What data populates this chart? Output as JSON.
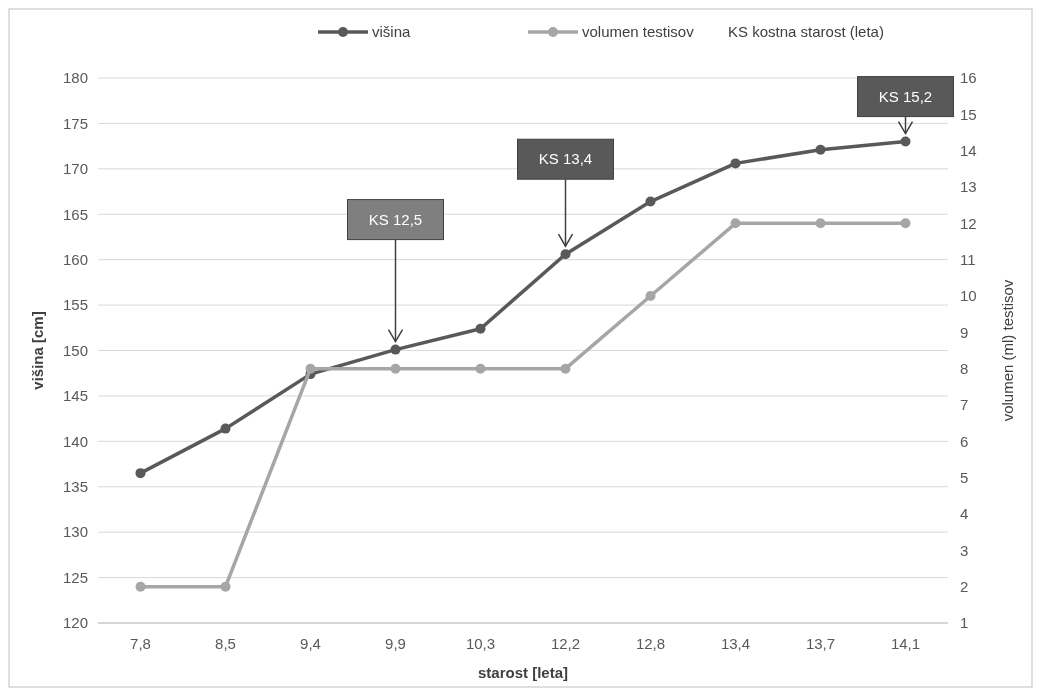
{
  "chart_data": {
    "type": "line",
    "xlabel": "starost [leta]",
    "ylabel": "višina [cm]",
    "y2label": "volumen (ml) testisov",
    "categories": [
      "7,8",
      "8,5",
      "9,4",
      "9,9",
      "10,3",
      "12,2",
      "12,8",
      "13,4",
      "13,7",
      "14,1"
    ],
    "series": [
      {
        "name": "višina",
        "color": "#595959",
        "values": [
          136.5,
          141.4,
          147.4,
          150.1,
          152.4,
          160.6,
          166.4,
          170.6,
          172.1,
          173.0
        ]
      },
      {
        "name": "volumen testisov",
        "color": "#a6a6a6",
        "axis": "y2",
        "values": [
          2,
          2,
          8,
          8,
          8,
          8,
          10,
          12,
          12,
          12
        ]
      }
    ],
    "ylim": [
      120,
      180
    ],
    "yticks": [
      120,
      125,
      130,
      135,
      140,
      145,
      150,
      155,
      160,
      165,
      170,
      175,
      180
    ],
    "y2lim": [
      1,
      16
    ],
    "y2ticks": [
      1,
      2,
      3,
      4,
      5,
      6,
      7,
      8,
      9,
      10,
      11,
      12,
      13,
      14,
      15,
      16
    ],
    "annotations": [
      {
        "text": "KS 12,5",
        "x": "9,9",
        "y": 150.1
      },
      {
        "text": "KS 13,4",
        "x": "12,2",
        "y": 160.6
      },
      {
        "text": "KS 15,2",
        "x": "14,1",
        "y": 173.0
      },
      "KS kostna starost (leta)"
    ],
    "grid": "y",
    "legend": "top",
    "marker": "circle",
    "line_style": "solid"
  }
}
